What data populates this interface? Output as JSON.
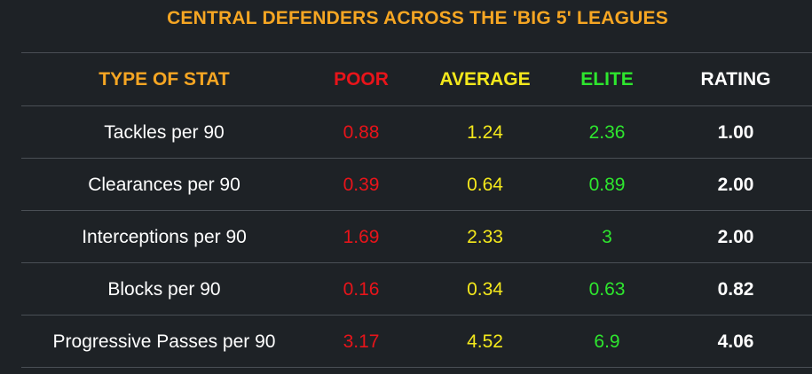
{
  "title": "CENTRAL DEFENDERS ACROSS THE 'BIG 5' LEAGUES",
  "colors": {
    "background": "#1e2226",
    "title": "#f6a623",
    "poor": "#e8141a",
    "average": "#f4e81c",
    "elite": "#2ee62e",
    "rating": "#ffffff",
    "divider": "#4a4f55"
  },
  "table": {
    "headers": {
      "stat": "TYPE OF STAT",
      "poor": "POOR",
      "average": "AVERAGE",
      "elite": "ELITE",
      "rating": "RATING"
    },
    "rows": [
      {
        "stat": "Tackles per 90",
        "poor": "0.88",
        "average": "1.24",
        "elite": "2.36",
        "rating": "1.00"
      },
      {
        "stat": "Clearances per 90",
        "poor": "0.39",
        "average": "0.64",
        "elite": "0.89",
        "rating": "2.00"
      },
      {
        "stat": "Interceptions per 90",
        "poor": "1.69",
        "average": "2.33",
        "elite": "3",
        "rating": "2.00"
      },
      {
        "stat": "Blocks per 90",
        "poor": "0.16",
        "average": "0.34",
        "elite": "0.63",
        "rating": "0.82"
      },
      {
        "stat": "Progressive Passes per 90",
        "poor": "3.17",
        "average": "4.52",
        "elite": "6.9",
        "rating": "4.06"
      }
    ]
  }
}
